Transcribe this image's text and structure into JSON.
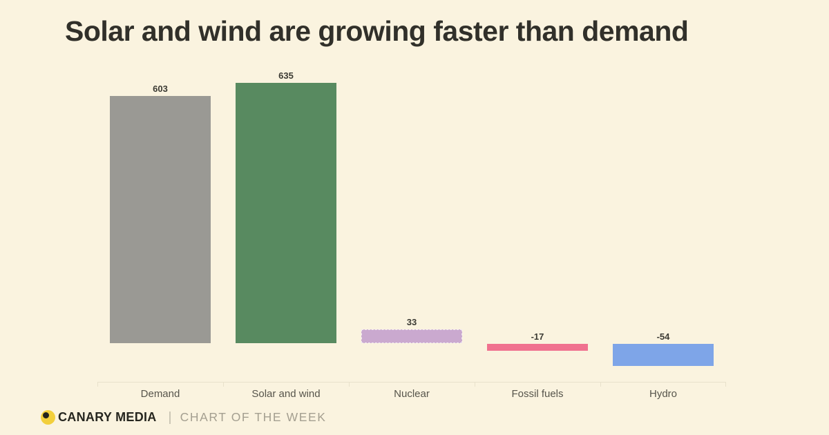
{
  "page": {
    "background_color": "#faf3df"
  },
  "title": "Solar and wind are growing faster than demand",
  "chart_data": {
    "type": "bar",
    "title": "Solar and wind are growing faster than demand",
    "categories": [
      "Demand",
      "Solar and wind",
      "Nuclear",
      "Fossil fuels",
      "Hydro"
    ],
    "values": [
      603,
      635,
      33,
      -17,
      -54
    ],
    "value_labels": [
      "603",
      "635",
      "33",
      "-17",
      "-54"
    ],
    "bar_colors": [
      "#9a9994",
      "#588a60",
      "#caa9cf",
      "#f0718f",
      "#7ea5e8"
    ],
    "bar_borders": [
      "none",
      "none",
      "dashed",
      "none",
      "none"
    ],
    "xlabel": "",
    "ylabel": "",
    "ylim": [
      -54,
      635
    ],
    "grid": false,
    "legend": false,
    "baseline": 0,
    "axis_line_color": "#e8e1cb",
    "value_label_color": "#3b3a33",
    "category_label_color": "#56544b"
  },
  "footer": {
    "brand": "CANARY MEDIA",
    "divider": "|",
    "series_label": "CHART OF THE WEEK",
    "logo": {
      "name": "canary-media-logo",
      "circle_color": "#f2cf3c",
      "dot_color": "#22221c"
    }
  }
}
